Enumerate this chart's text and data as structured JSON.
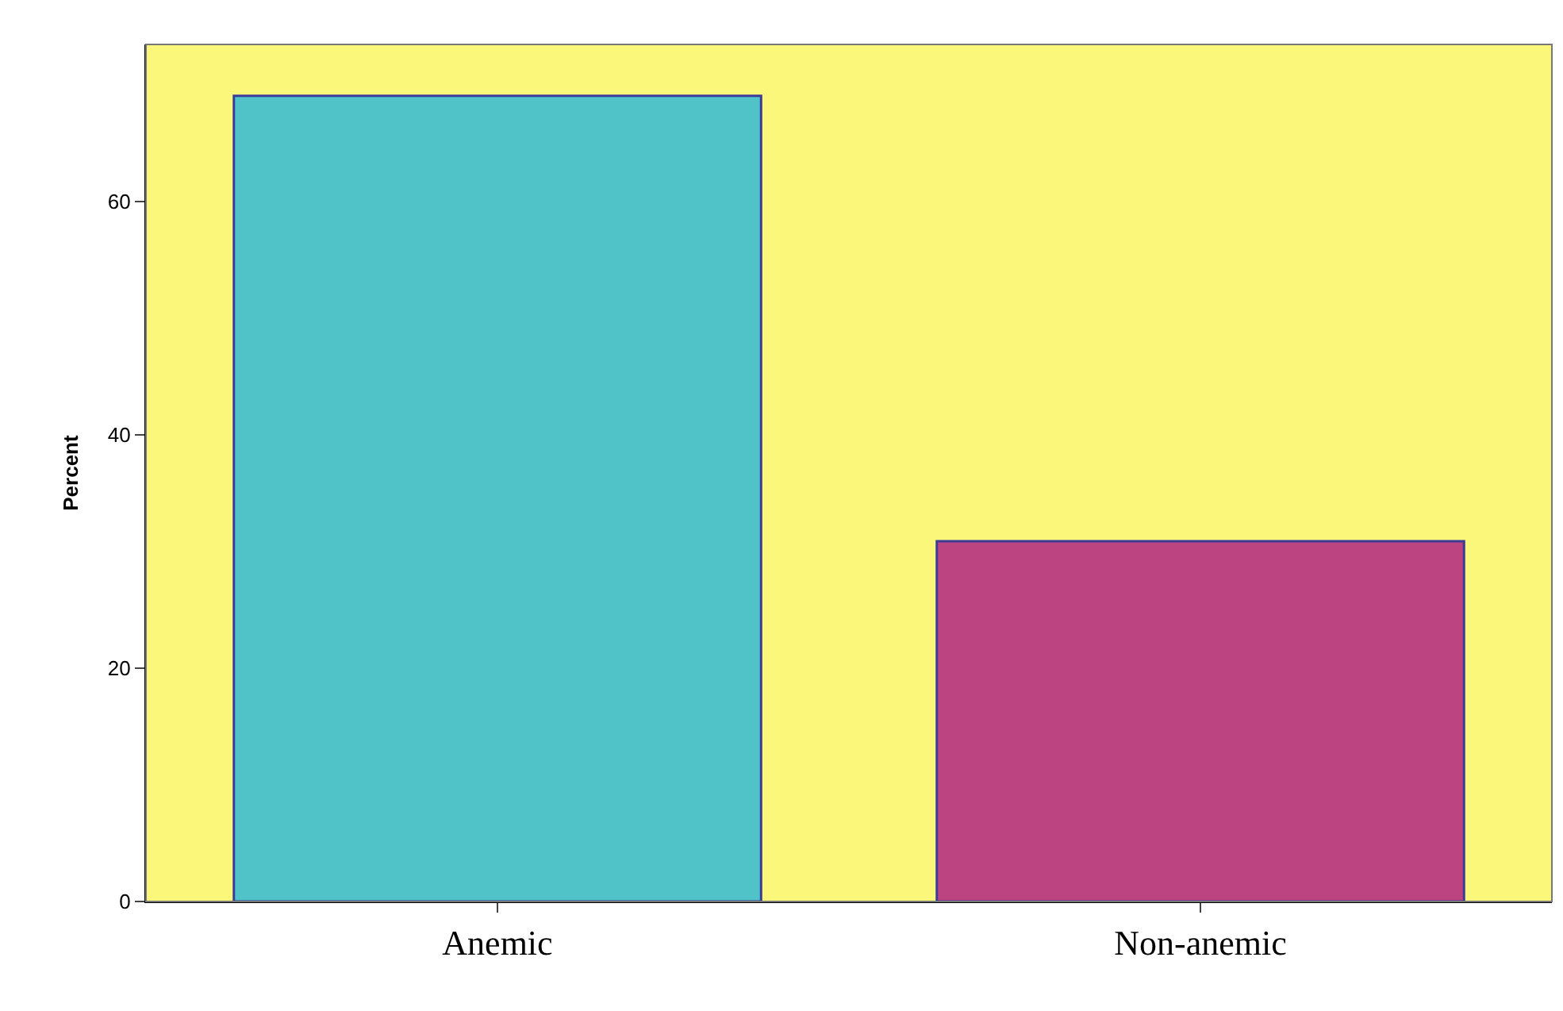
{
  "chart_data": {
    "type": "bar",
    "ylabel": "Percent",
    "categories": [
      "Anemic",
      "Non-anemic"
    ],
    "values": [
      69.1,
      30.9
    ],
    "colors": [
      "#4fc3c8",
      "#bc4480"
    ],
    "ylim": [
      0,
      73.5
    ],
    "yticks": [
      0,
      20,
      40,
      60
    ],
    "grid": false,
    "legend": false
  }
}
